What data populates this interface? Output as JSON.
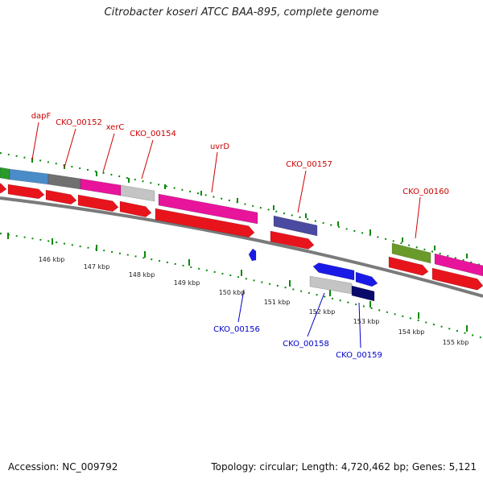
{
  "title": "Citrobacter koseri ATCC BAA-895, complete genome",
  "accession": "Accession: NC_009792",
  "topology": "Topology: circular; Length: 4,720,462 bp; Genes: 5,121",
  "colors": {
    "gene_red": "#e8141c",
    "gene_blue": "#1a1ae6",
    "label_red": "#cc0000",
    "label_blue": "#0000cc",
    "tick_green": "#0a8a0a",
    "backbone": "#7a7a7a",
    "pink": "#e8149b",
    "steel_blue": "#4a8cc8",
    "gray": "#707070",
    "light_gray": "#c4c4c4",
    "slate": "#4a4aa0",
    "olive": "#6a9a2a",
    "navy": "#0a0a6a",
    "green": "#2a9a2a"
  },
  "gene_labels_top": [
    "dapF",
    "CKO_00152",
    "xerC",
    "CKO_00154",
    "uvrD",
    "CKO_00157",
    "CKO_00160"
  ],
  "gene_labels_bottom": [
    "CKO_00156",
    "CKO_00158",
    "CKO_00159"
  ],
  "kbp_ticks": [
    "146 kbp",
    "147 kbp",
    "148 kbp",
    "149 kbp",
    "150 kbp",
    "151 kbp",
    "152 kbp",
    "153 kbp",
    "154 kbp",
    "155 kbp"
  ]
}
